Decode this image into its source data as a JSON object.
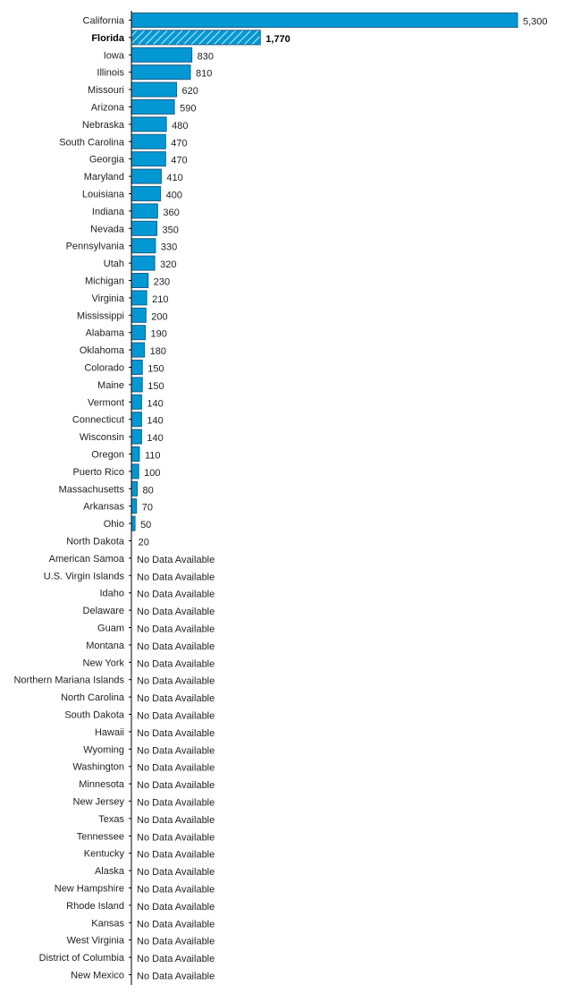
{
  "chart_data": {
    "type": "bar",
    "orientation": "horizontal",
    "title": "",
    "xlabel": "",
    "ylabel": "",
    "xlim": [
      0,
      5300
    ],
    "grid": false,
    "bar_color": "#0398d4",
    "bar_edge_color": "#1a5f85",
    "highlight": "Florida",
    "missing_label": "No Data Available",
    "categories": [
      "California",
      "Florida",
      "Iowa",
      "Illinois",
      "Missouri",
      "Arizona",
      "Nebraska",
      "South Carolina",
      "Georgia",
      "Maryland",
      "Louisiana",
      "Indiana",
      "Nevada",
      "Pennsylvania",
      "Utah",
      "Michigan",
      "Virginia",
      "Mississippi",
      "Alabama",
      "Oklahoma",
      "Colorado",
      "Maine",
      "Vermont",
      "Connecticut",
      "Wisconsin",
      "Oregon",
      "Puerto Rico",
      "Massachusetts",
      "Arkansas",
      "Ohio",
      "North Dakota",
      "American Samoa",
      "U.S. Virgin Islands",
      "Idaho",
      "Delaware",
      "Guam",
      "Montana",
      "New York",
      "Northern Mariana Islands",
      "North Carolina",
      "South Dakota",
      "Hawaii",
      "Wyoming",
      "Washington",
      "Minnesota",
      "New Jersey",
      "Texas",
      "Tennessee",
      "Kentucky",
      "Alaska",
      "New Hampshire",
      "Rhode Island",
      "Kansas",
      "West Virginia",
      "District of Columbia",
      "New Mexico"
    ],
    "values": [
      5300,
      1770,
      830,
      810,
      620,
      590,
      480,
      470,
      470,
      410,
      400,
      360,
      350,
      330,
      320,
      230,
      210,
      200,
      190,
      180,
      150,
      150,
      140,
      140,
      140,
      110,
      100,
      80,
      70,
      50,
      20,
      null,
      null,
      null,
      null,
      null,
      null,
      null,
      null,
      null,
      null,
      null,
      null,
      null,
      null,
      null,
      null,
      null,
      null,
      null,
      null,
      null,
      null,
      null,
      null,
      null
    ],
    "value_labels": [
      "5,300",
      "1,770",
      "830",
      "810",
      "620",
      "590",
      "480",
      "470",
      "470",
      "410",
      "400",
      "360",
      "350",
      "330",
      "320",
      "230",
      "210",
      "200",
      "190",
      "180",
      "150",
      "150",
      "140",
      "140",
      "140",
      "110",
      "100",
      "80",
      "70",
      "50",
      "20",
      "No Data Available",
      "No Data Available",
      "No Data Available",
      "No Data Available",
      "No Data Available",
      "No Data Available",
      "No Data Available",
      "No Data Available",
      "No Data Available",
      "No Data Available",
      "No Data Available",
      "No Data Available",
      "No Data Available",
      "No Data Available",
      "No Data Available",
      "No Data Available",
      "No Data Available",
      "No Data Available",
      "No Data Available",
      "No Data Available",
      "No Data Available",
      "No Data Available",
      "No Data Available",
      "No Data Available",
      "No Data Available"
    ]
  }
}
